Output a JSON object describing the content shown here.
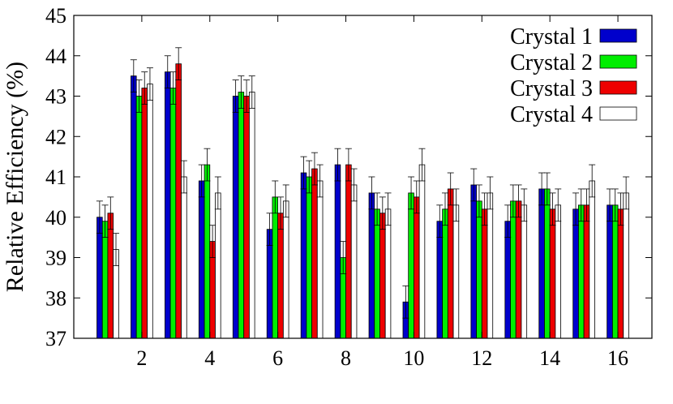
{
  "chart_data": {
    "type": "bar",
    "ylabel": "Relative Efficiency (%)",
    "xlabel": "",
    "title": "",
    "ylim": [
      37,
      45
    ],
    "xlim": [
      0,
      17
    ],
    "x_ticks": [
      2,
      4,
      6,
      8,
      10,
      12,
      14,
      16
    ],
    "y_ticks": [
      37,
      38,
      39,
      40,
      41,
      42,
      43,
      44,
      45
    ],
    "categories": [
      1,
      2,
      3,
      4,
      5,
      6,
      7,
      8,
      9,
      10,
      11,
      12,
      13,
      14,
      15,
      16
    ],
    "error": 0.4,
    "legend_position": "top-right",
    "grid": false,
    "series": [
      {
        "name": "Crystal 1",
        "color": "#0000cc",
        "values": [
          40.0,
          43.5,
          43.6,
          40.9,
          43.0,
          39.7,
          41.1,
          41.3,
          40.6,
          37.9,
          39.9,
          40.8,
          39.9,
          40.7,
          40.2,
          40.3
        ]
      },
      {
        "name": "Crystal 2",
        "color": "#00ee00",
        "values": [
          39.9,
          43.0,
          43.2,
          41.3,
          43.1,
          40.5,
          41.0,
          39.0,
          40.2,
          40.6,
          40.2,
          40.4,
          40.4,
          40.7,
          40.3,
          40.3
        ]
      },
      {
        "name": "Crystal 3",
        "color": "#ee0000",
        "values": [
          40.1,
          43.2,
          43.8,
          39.4,
          43.0,
          40.1,
          41.2,
          41.3,
          40.1,
          40.5,
          40.7,
          40.2,
          40.4,
          40.2,
          40.3,
          40.2
        ]
      },
      {
        "name": "Crystal 4",
        "color": "#ffffff",
        "values": [
          39.2,
          43.3,
          41.0,
          40.6,
          43.1,
          40.4,
          40.9,
          40.8,
          40.2,
          41.3,
          40.3,
          40.6,
          40.3,
          40.3,
          40.9,
          40.6
        ]
      }
    ]
  }
}
